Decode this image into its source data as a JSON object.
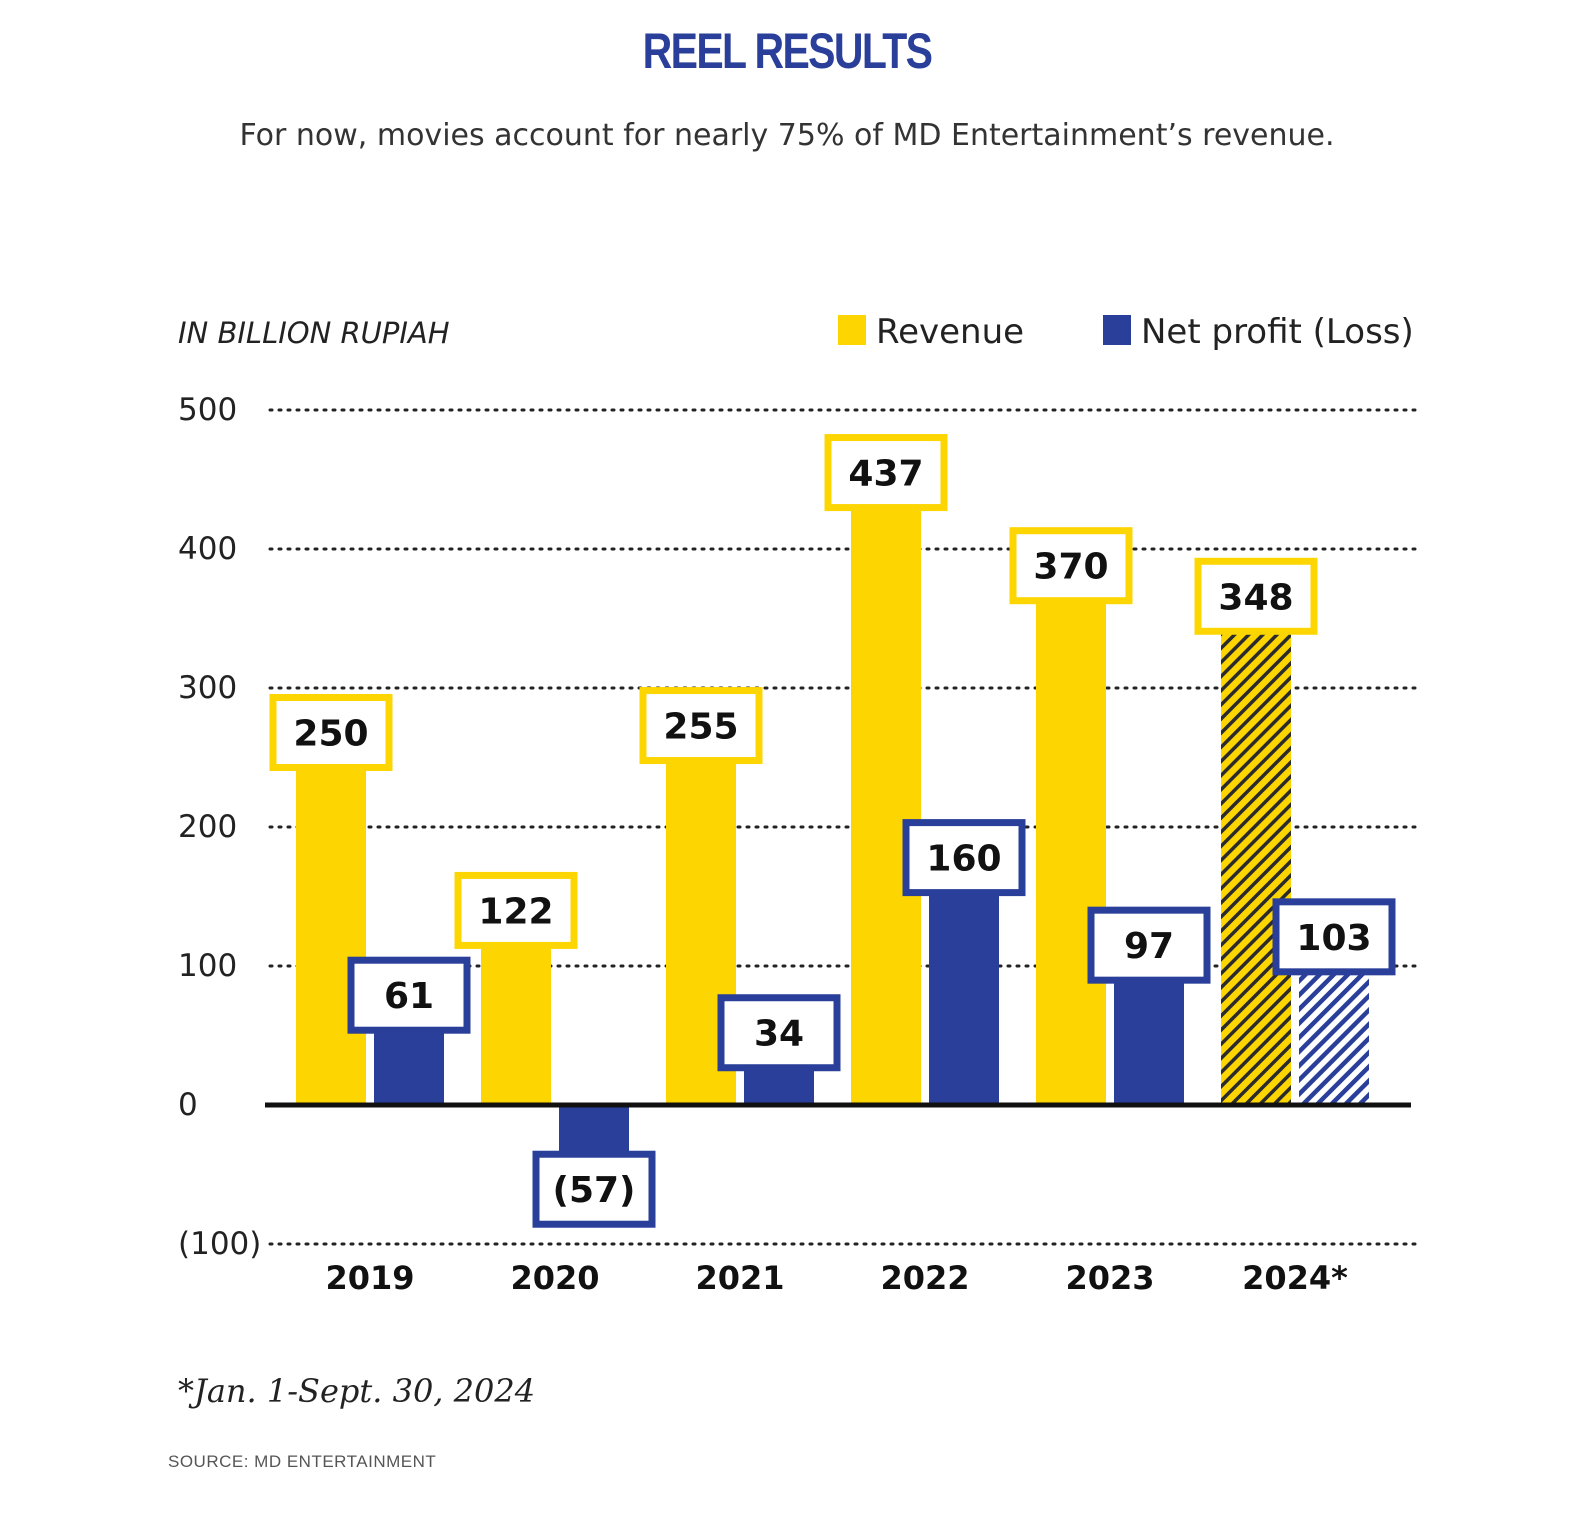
{
  "title": "REEL RESULTS",
  "subtitle": "For now, movies account for nearly 75% of MD Entertainment’s revenue.",
  "footnote": "*Jan. 1-Sept. 30, 2024",
  "source": "SOURCE: MD ENTERTAINMENT",
  "colors": {
    "revenue": "#fdd500",
    "profit": "#2a3f9a"
  },
  "chart_data": {
    "type": "bar",
    "unit_label": "IN BILLION RUPIAH",
    "categories": [
      "2019",
      "2020",
      "2021",
      "2022",
      "2023",
      "2024*"
    ],
    "series": [
      {
        "name": "Revenue",
        "values": [
          250,
          122,
          255,
          437,
          370,
          348
        ],
        "labels": [
          "250",
          "122",
          "255",
          "437",
          "370",
          "348"
        ]
      },
      {
        "name": "Net profit (Loss)",
        "values": [
          61,
          -57,
          34,
          160,
          97,
          103
        ],
        "labels": [
          "61",
          "(57)",
          "34",
          "160",
          "97",
          "103"
        ]
      }
    ],
    "hatched_categories": [
      "2024*"
    ],
    "ylim": [
      -100,
      500
    ],
    "yticks": [
      500,
      400,
      300,
      200,
      100,
      0,
      -100
    ],
    "ytick_labels": [
      "500",
      "400",
      "300",
      "200",
      "100",
      "0",
      "(100)"
    ],
    "grid": "dotted",
    "legend_position": "top-right"
  }
}
